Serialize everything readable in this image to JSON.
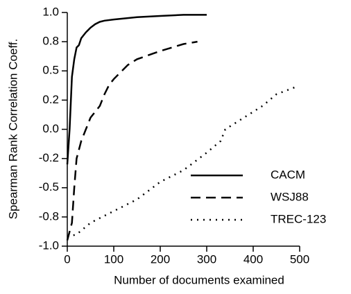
{
  "chart_data": {
    "type": "line",
    "xlabel": "Number of documents examined",
    "ylabel": "Spearman Rank Correlation Coeff.",
    "xlim": [
      0,
      500
    ],
    "xticks": [
      0,
      100,
      200,
      300,
      400,
      500
    ],
    "ylim": [
      -1,
      1
    ],
    "yticks": [
      {
        "value": 1,
        "label": "1.0"
      },
      {
        "value": 0.75,
        "label": "0.8"
      },
      0.5,
      {
        "value": 0.25,
        "label": "0.2"
      },
      {
        "value": 0,
        "label": "0.0"
      },
      {
        "value": -0.25,
        "label": "-0.2"
      },
      -0.5,
      {
        "value": -0.75,
        "label": "-0.8"
      },
      {
        "value": -1,
        "label": "-1.0"
      }
    ],
    "grid": false,
    "legend": "lower right",
    "series": [
      {
        "name": "CACM",
        "color": "#000000",
        "style": "solid",
        "x": [
          0,
          5,
          10,
          15,
          20,
          25,
          30,
          40,
          50,
          60,
          70,
          80,
          100,
          150,
          200,
          250,
          300
        ],
        "values": [
          -0.3,
          0.0,
          0.45,
          0.6,
          0.7,
          0.72,
          0.78,
          0.83,
          0.87,
          0.9,
          0.92,
          0.93,
          0.94,
          0.96,
          0.97,
          0.98,
          0.98
        ]
      },
      {
        "name": "WSJ88",
        "color": "#000000",
        "style": "dashed",
        "x": [
          0,
          10,
          15,
          20,
          30,
          40,
          50,
          60,
          70,
          80,
          90,
          100,
          130,
          150,
          200,
          250,
          280
        ],
        "values": [
          -0.95,
          -0.8,
          -0.5,
          -0.25,
          -0.1,
          0.0,
          0.1,
          0.15,
          0.2,
          0.3,
          0.38,
          0.43,
          0.55,
          0.6,
          0.67,
          0.73,
          0.75
        ]
      },
      {
        "name": "TREC-123",
        "color": "#000000",
        "style": "dotted",
        "x": [
          0,
          20,
          50,
          100,
          150,
          200,
          250,
          300,
          330,
          340,
          400,
          420,
          450,
          490
        ],
        "values": [
          -0.92,
          -0.9,
          -0.8,
          -0.7,
          -0.6,
          -0.45,
          -0.35,
          -0.2,
          -0.1,
          0.0,
          0.15,
          0.2,
          0.3,
          0.36
        ]
      }
    ]
  }
}
